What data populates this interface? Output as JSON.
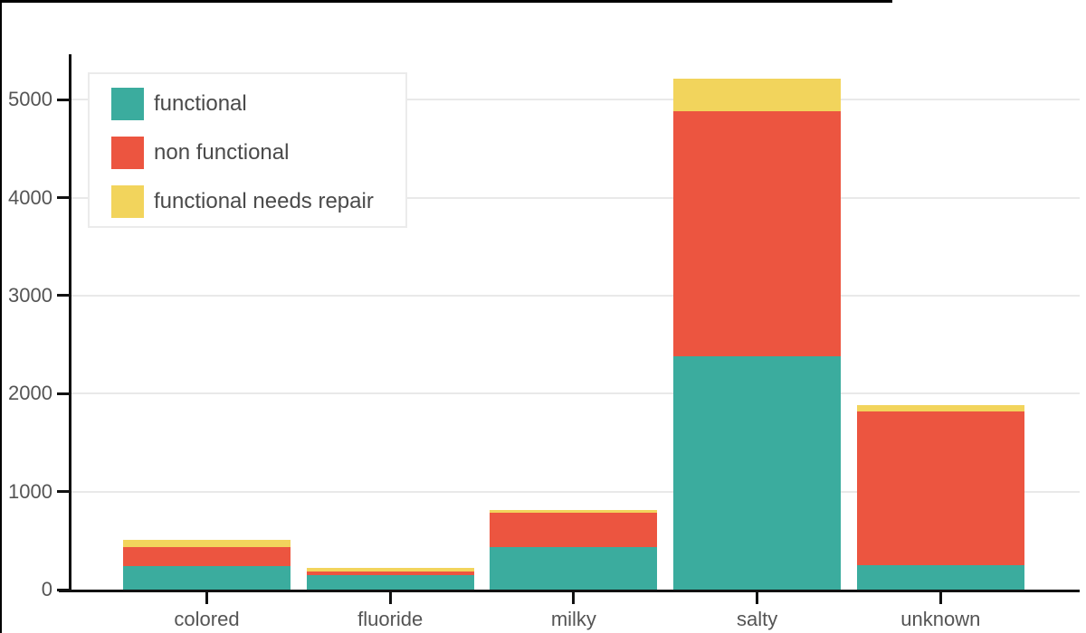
{
  "chart_data": {
    "type": "bar",
    "stacked": true,
    "title": "",
    "xlabel": "",
    "ylabel": "",
    "categories": [
      "colored",
      "fluoride",
      "milky",
      "salty",
      "unknown"
    ],
    "series": [
      {
        "name": "functional",
        "color": "#3BAC9E",
        "values": [
          240,
          145,
          430,
          2380,
          250
        ]
      },
      {
        "name": "non functional",
        "color": "#EC5540",
        "values": [
          190,
          40,
          350,
          2505,
          1570
        ]
      },
      {
        "name": "functional needs repair",
        "color": "#F2D45C",
        "values": [
          75,
          35,
          30,
          330,
          60
        ]
      }
    ],
    "ylim": [
      0,
      5470
    ],
    "yticks": [
      0,
      1000,
      2000,
      3000,
      4000,
      5000
    ],
    "grid": true,
    "legend_position": "upper left"
  },
  "legend": {
    "items": [
      {
        "label": "functional",
        "color": "#3BAC9E"
      },
      {
        "label": "non functional",
        "color": "#EC5540"
      },
      {
        "label": "functional needs repair",
        "color": "#F2D45C"
      }
    ]
  },
  "axes": {
    "y_tick_labels": [
      "0",
      "1000",
      "2000",
      "3000",
      "4000",
      "5000"
    ],
    "x_tick_labels": [
      "colored",
      "fluoride",
      "milky",
      "salty",
      "unknown"
    ]
  }
}
